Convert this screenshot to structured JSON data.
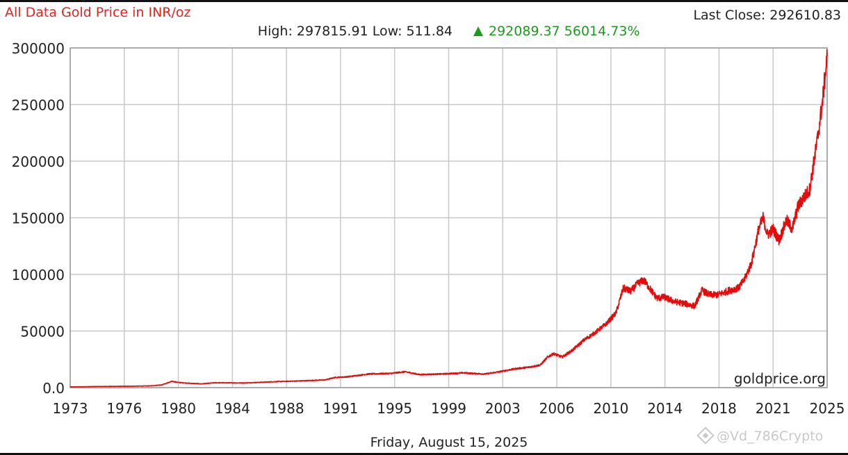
{
  "header": {
    "title": "All Data Gold Price in INR/oz",
    "last_close": "Last Close: 292610.83",
    "high_low": "High: 297815.91 Low: 511.84",
    "change_arrow": "▲",
    "change": "292089.37 56014.73%"
  },
  "footer": {
    "date": "Friday, August 15, 2025",
    "brand": "goldprice.org",
    "watermark": "@Vd_786Crypto"
  },
  "colors": {
    "series": "#e30b0b",
    "title": "#e8211d",
    "change": "#1e9a1e",
    "grid": "#c8c8c8"
  },
  "chart_data": {
    "type": "line",
    "title": "All Data Gold Price in INR/oz",
    "xlabel": "",
    "ylabel": "",
    "x_range": [
      1973,
      2025
    ],
    "ylim": [
      0,
      300000
    ],
    "x_ticks": [
      "1973",
      "1976",
      "1980",
      "1984",
      "1988",
      "1991",
      "1995",
      "1999",
      "2003",
      "2006",
      "2010",
      "2014",
      "2018",
      "2021",
      "2025"
    ],
    "y_ticks": [
      "0.0",
      "50000",
      "100000",
      "150000",
      "200000",
      "250000",
      "300000"
    ],
    "grid": true,
    "series": [
      {
        "x": [
          1973,
          1975,
          1977,
          1978.5,
          1979.3,
          1979.7,
          1980.0,
          1980.5,
          1981,
          1982,
          1983,
          1985,
          1987,
          1989,
          1990.5,
          1991.2,
          1992,
          1993.5,
          1995,
          1996,
          1997,
          1998.5,
          2000,
          2001.5,
          2002.5,
          2003.5,
          2004.5,
          2005.3,
          2005.8,
          2006.2,
          2006.8,
          2007.5,
          2008.3,
          2009,
          2009.8,
          2010.5,
          2011.0,
          2011.5,
          2012.0,
          2012.4,
          2012.8,
          2013.3,
          2013.8,
          2014.5,
          2015.3,
          2015.9,
          2016.4,
          2016.9,
          2017.5,
          2018.3,
          2018.9,
          2019.3,
          2019.8,
          2020.3,
          2020.6,
          2020.9,
          2021.3,
          2021.7,
          2022.2,
          2022.6,
          2023.0,
          2023.4,
          2023.8,
          2024.1,
          2024.4,
          2024.7,
          2024.9,
          2025.0
        ],
        "y": [
          600,
          1000,
          1200,
          1500,
          2500,
          4200,
          5500,
          4500,
          4000,
          3300,
          4300,
          4100,
          5200,
          6000,
          6800,
          9000,
          9500,
          12000,
          12500,
          14000,
          11500,
          12000,
          13000,
          12000,
          14000,
          16500,
          18000,
          20000,
          27000,
          30000,
          27000,
          33000,
          42000,
          48000,
          56000,
          66000,
          88000,
          85000,
          92000,
          95000,
          88000,
          79000,
          80000,
          76000,
          74000,
          72000,
          86000,
          82000,
          82000,
          86000,
          88000,
          95000,
          110000,
          140000,
          150000,
          135000,
          140000,
          130000,
          148000,
          140000,
          160000,
          168000,
          175000,
          200000,
          225000,
          255000,
          280000,
          292611
        ]
      }
    ]
  }
}
